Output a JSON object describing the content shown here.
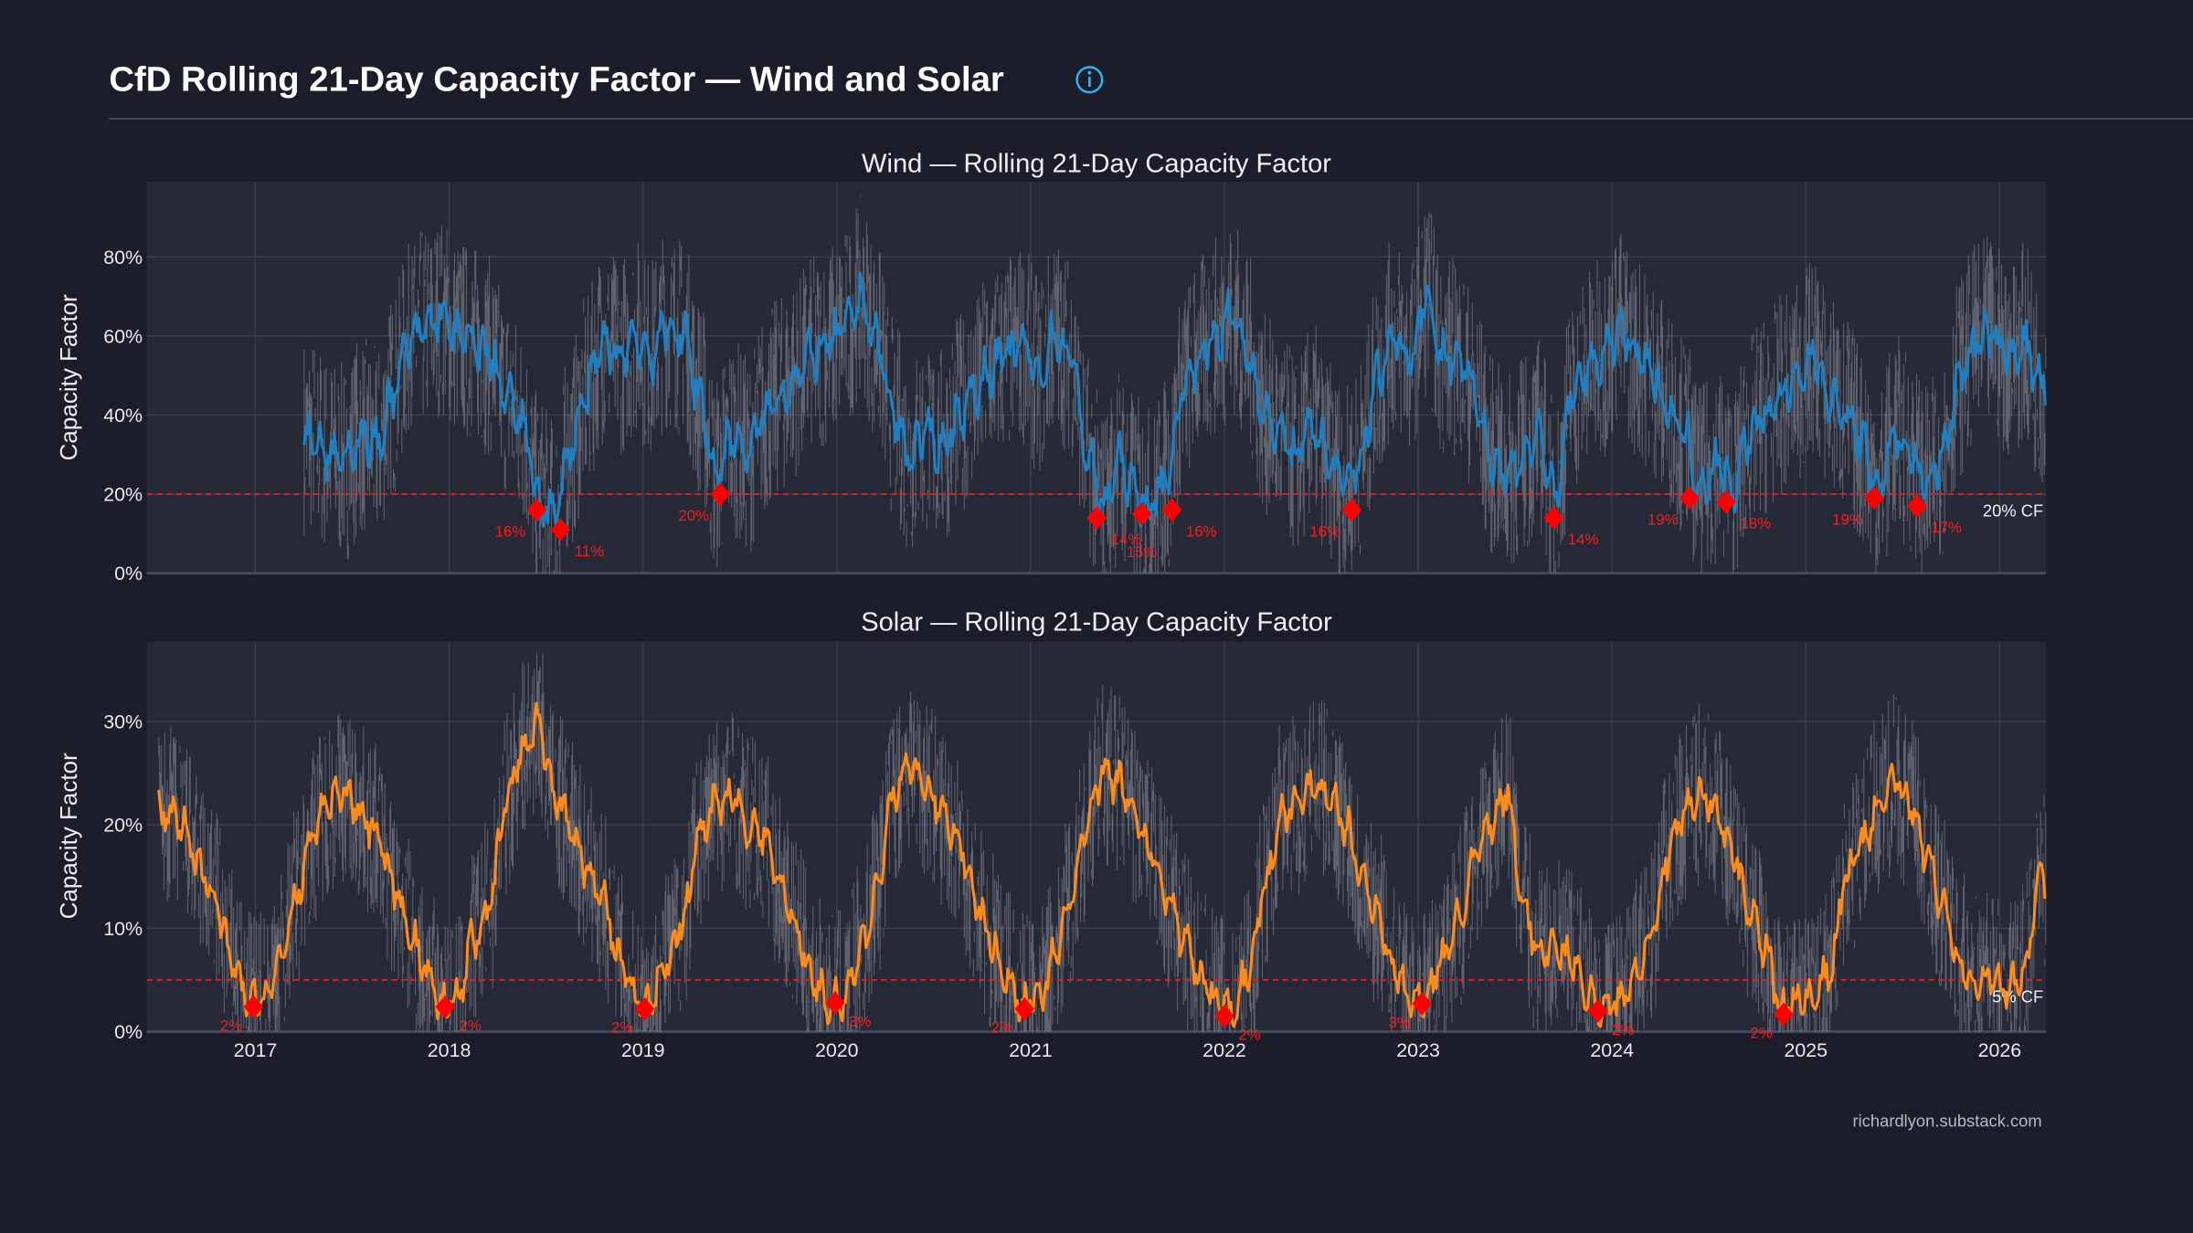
{
  "header": {
    "title": "CfD Rolling 21-Day Capacity Factor — Wind and Solar",
    "info_icon": "info-circle-icon"
  },
  "footer": {
    "credit": "richardlyon.substack.com"
  },
  "colors": {
    "background": "#1b1d2a",
    "plot_background": "#262936",
    "wind": "#1f7fc0",
    "solar": "#ff8c1a",
    "daily": "#8a8d98",
    "threshold": "#e02020",
    "minima": "#ff0000",
    "info": "#29b6f6"
  },
  "chart_data": [
    {
      "type": "line",
      "title": "Wind — Rolling 21-Day Capacity Factor",
      "ylabel": "Capacity Factor",
      "xlabel": "",
      "ylim": [
        0,
        99
      ],
      "yticks": [
        "0%",
        "20%",
        "40%",
        "60%",
        "80%"
      ],
      "ytick_values": [
        0,
        20,
        40,
        60,
        80
      ],
      "xlim": [
        "2016-06",
        "2026-03"
      ],
      "grid": true,
      "threshold": {
        "value": 20,
        "label": "20% CF"
      },
      "series": [
        {
          "kind": "daily",
          "note_color": "daily"
        },
        {
          "kind": "rolling",
          "color": "wind",
          "x": [
            "2017-04",
            "2017-05",
            "2017-06",
            "2017-07",
            "2017-08",
            "2017-09",
            "2017-10",
            "2017-11",
            "2017-12",
            "2018-01",
            "2018-02",
            "2018-03",
            "2018-04",
            "2018-05",
            "2018-06",
            "2018-07",
            "2018-08",
            "2018-09",
            "2018-10",
            "2018-11",
            "2018-12",
            "2019-01",
            "2019-02",
            "2019-03",
            "2019-04",
            "2019-05",
            "2019-06",
            "2019-07",
            "2019-08",
            "2019-09",
            "2019-10",
            "2019-11",
            "2019-12",
            "2020-01",
            "2020-02",
            "2020-03",
            "2020-04",
            "2020-05",
            "2020-06",
            "2020-07",
            "2020-08",
            "2020-09",
            "2020-10",
            "2020-11",
            "2020-12",
            "2021-01",
            "2021-02",
            "2021-03",
            "2021-04",
            "2021-05",
            "2021-06",
            "2021-07",
            "2021-08",
            "2021-09",
            "2021-10",
            "2021-11",
            "2021-12",
            "2022-01",
            "2022-02",
            "2022-03",
            "2022-04",
            "2022-05",
            "2022-06",
            "2022-07",
            "2022-08",
            "2022-09",
            "2022-10",
            "2022-11",
            "2022-12",
            "2023-01",
            "2023-02",
            "2023-03",
            "2023-04",
            "2023-05",
            "2023-06",
            "2023-07",
            "2023-08",
            "2023-09",
            "2023-10",
            "2023-11",
            "2023-12",
            "2024-01",
            "2024-02",
            "2024-03",
            "2024-04",
            "2024-05",
            "2024-06",
            "2024-07",
            "2024-08",
            "2024-09",
            "2024-10",
            "2024-11",
            "2024-12",
            "2025-01",
            "2025-02",
            "2025-03",
            "2025-04",
            "2025-05",
            "2025-06",
            "2025-07",
            "2025-08",
            "2025-09",
            "2025-10",
            "2025-11",
            "2025-12",
            "2026-01",
            "2026-02",
            "2026-03"
          ],
          "y": [
            35,
            30,
            28,
            35,
            32,
            45,
            58,
            62,
            65,
            60,
            58,
            55,
            45,
            38,
            20,
            14,
            32,
            45,
            58,
            55,
            60,
            55,
            62,
            60,
            45,
            25,
            35,
            30,
            40,
            45,
            50,
            55,
            58,
            62,
            70,
            58,
            40,
            30,
            35,
            32,
            40,
            45,
            52,
            55,
            58,
            50,
            60,
            55,
            30,
            17,
            28,
            20,
            17,
            25,
            48,
            55,
            60,
            65,
            55,
            40,
            35,
            30,
            38,
            28,
            22,
            30,
            50,
            60,
            55,
            70,
            55,
            55,
            45,
            30,
            25,
            30,
            35,
            18,
            45,
            52,
            55,
            62,
            55,
            50,
            42,
            35,
            22,
            28,
            22,
            35,
            40,
            45,
            48,
            55,
            45,
            40,
            32,
            22,
            35,
            30,
            22,
            30,
            50,
            58,
            60,
            55,
            58,
            48
          ]
        }
      ],
      "minima": [
        {
          "date": "2018-06-14",
          "value": 16,
          "label": "16%"
        },
        {
          "date": "2018-07-28",
          "value": 11,
          "label": "11%"
        },
        {
          "date": "2019-05-25",
          "value": 20,
          "label": "20%"
        },
        {
          "date": "2021-05-04",
          "value": 14,
          "label": "14%"
        },
        {
          "date": "2021-07-28",
          "value": 15,
          "label": "15%"
        },
        {
          "date": "2021-09-24",
          "value": 16,
          "label": "16%"
        },
        {
          "date": "2022-08-28",
          "value": 16,
          "label": "16%"
        },
        {
          "date": "2023-09-13",
          "value": 14,
          "label": "14%"
        },
        {
          "date": "2024-05-25",
          "value": 19,
          "label": "19%"
        },
        {
          "date": "2024-08-03",
          "value": 18,
          "label": "18%"
        },
        {
          "date": "2025-05-08",
          "value": 19,
          "label": "19%"
        },
        {
          "date": "2025-07-28",
          "value": 17,
          "label": "17%"
        }
      ]
    },
    {
      "type": "line",
      "title": "Solar — Rolling 21-Day Capacity Factor",
      "ylabel": "Capacity Factor",
      "xlabel": "",
      "ylim": [
        0,
        37.7
      ],
      "yticks": [
        "0%",
        "10%",
        "20%",
        "30%"
      ],
      "ytick_values": [
        0,
        10,
        20,
        30
      ],
      "xticks": [
        "2017",
        "2018",
        "2019",
        "2020",
        "2021",
        "2022",
        "2023",
        "2024",
        "2025",
        "2026"
      ],
      "xlim": [
        "2016-06",
        "2026-03"
      ],
      "grid": true,
      "threshold": {
        "value": 5,
        "label": "5% CF"
      },
      "series": [
        {
          "kind": "daily",
          "note_color": "daily"
        },
        {
          "kind": "rolling",
          "color": "solar",
          "x": [
            "2016-07",
            "2016-08",
            "2016-09",
            "2016-10",
            "2016-11",
            "2016-12",
            "2017-01",
            "2017-02",
            "2017-03",
            "2017-04",
            "2017-05",
            "2017-06",
            "2017-07",
            "2017-08",
            "2017-09",
            "2017-10",
            "2017-11",
            "2017-12",
            "2018-01",
            "2018-02",
            "2018-03",
            "2018-04",
            "2018-05",
            "2018-06",
            "2018-07",
            "2018-08",
            "2018-09",
            "2018-10",
            "2018-11",
            "2018-12",
            "2019-01",
            "2019-02",
            "2019-03",
            "2019-04",
            "2019-05",
            "2019-06",
            "2019-07",
            "2019-08",
            "2019-09",
            "2019-10",
            "2019-11",
            "2019-12",
            "2020-01",
            "2020-02",
            "2020-03",
            "2020-04",
            "2020-05",
            "2020-06",
            "2020-07",
            "2020-08",
            "2020-09",
            "2020-10",
            "2020-11",
            "2020-12",
            "2021-01",
            "2021-02",
            "2021-03",
            "2021-04",
            "2021-05",
            "2021-06",
            "2021-07",
            "2021-08",
            "2021-09",
            "2021-10",
            "2021-11",
            "2021-12",
            "2022-01",
            "2022-02",
            "2022-03",
            "2022-04",
            "2022-05",
            "2022-06",
            "2022-07",
            "2022-08",
            "2022-09",
            "2022-10",
            "2022-11",
            "2022-12",
            "2023-01",
            "2023-02",
            "2023-03",
            "2023-04",
            "2023-05",
            "2023-06",
            "2023-07",
            "2023-08",
            "2023-09",
            "2023-10",
            "2023-11",
            "2023-12",
            "2024-01",
            "2024-02",
            "2024-03",
            "2024-04",
            "2024-05",
            "2024-06",
            "2024-07",
            "2024-08",
            "2024-09",
            "2024-10",
            "2024-11",
            "2024-12",
            "2025-01",
            "2025-02",
            "2025-03",
            "2025-04",
            "2025-05",
            "2025-06",
            "2025-07",
            "2025-08",
            "2025-09",
            "2025-10",
            "2025-11",
            "2025-12",
            "2026-01",
            "2026-02",
            "2026-03"
          ],
          "y": [
            21,
            20,
            16,
            13,
            7,
            3,
            3,
            7,
            13,
            19,
            22,
            23,
            21,
            19,
            14,
            10,
            6,
            3,
            3,
            9,
            12,
            22,
            27,
            30,
            23,
            20,
            16,
            13,
            7,
            3,
            3,
            7,
            11,
            19,
            22,
            23,
            20,
            19,
            14,
            10,
            5,
            3,
            3,
            8,
            14,
            23,
            26,
            24,
            21,
            19,
            13,
            9,
            5,
            3,
            3,
            7,
            13,
            20,
            25,
            24,
            21,
            17,
            13,
            9,
            5,
            3,
            2,
            6,
            14,
            21,
            22,
            24,
            23,
            20,
            15,
            11,
            6,
            3,
            3,
            7,
            11,
            17,
            20,
            23,
            12,
            8,
            8,
            7,
            4,
            2,
            3,
            6,
            10,
            17,
            21,
            23,
            21,
            17,
            12,
            8,
            2,
            3,
            3,
            6,
            15,
            18,
            22,
            24,
            22,
            17,
            12,
            7,
            5,
            5,
            4,
            6,
            15
          ]
        }
      ],
      "minima": [
        {
          "date": "2016-12-28",
          "value": 2.4,
          "label": "2%"
        },
        {
          "date": "2017-12-24",
          "value": 2.4,
          "label": "2%"
        },
        {
          "date": "2019-01-04",
          "value": 2.2,
          "label": "2%"
        },
        {
          "date": "2019-12-28",
          "value": 2.8,
          "label": "3%"
        },
        {
          "date": "2020-12-20",
          "value": 2.2,
          "label": "2%"
        },
        {
          "date": "2022-01-01",
          "value": 1.5,
          "label": "2%"
        },
        {
          "date": "2023-01-08",
          "value": 2.7,
          "label": "3%"
        },
        {
          "date": "2023-12-05",
          "value": 2.0,
          "label": "2%"
        },
        {
          "date": "2024-11-20",
          "value": 1.7,
          "label": "2%"
        }
      ]
    }
  ]
}
